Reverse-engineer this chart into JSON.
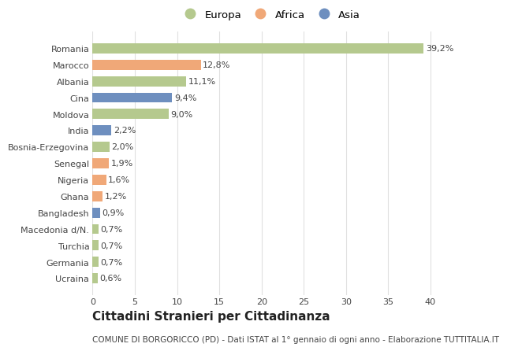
{
  "countries": [
    "Romania",
    "Marocco",
    "Albania",
    "Cina",
    "Moldova",
    "India",
    "Bosnia-Erzegovina",
    "Senegal",
    "Nigeria",
    "Ghana",
    "Bangladesh",
    "Macedonia d/N.",
    "Turchia",
    "Germania",
    "Ucraina"
  ],
  "values": [
    39.2,
    12.8,
    11.1,
    9.4,
    9.0,
    2.2,
    2.0,
    1.9,
    1.6,
    1.2,
    0.9,
    0.7,
    0.7,
    0.7,
    0.6
  ],
  "labels": [
    "39,2%",
    "12,8%",
    "11,1%",
    "9,4%",
    "9,0%",
    "2,2%",
    "2,0%",
    "1,9%",
    "1,6%",
    "1,2%",
    "0,9%",
    "0,7%",
    "0,7%",
    "0,7%",
    "0,6%"
  ],
  "continents": [
    "Europa",
    "Africa",
    "Europa",
    "Asia",
    "Europa",
    "Asia",
    "Europa",
    "Africa",
    "Africa",
    "Africa",
    "Asia",
    "Europa",
    "Europa",
    "Europa",
    "Europa"
  ],
  "colors": {
    "Europa": "#b5c98e",
    "Africa": "#f0a878",
    "Asia": "#6e8fbf"
  },
  "xlim": [
    0,
    42
  ],
  "xticks": [
    0,
    5,
    10,
    15,
    20,
    25,
    30,
    35,
    40
  ],
  "background_color": "#ffffff",
  "title": "Cittadini Stranieri per Cittadinanza",
  "subtitle": "COMUNE DI BORGORICCO (PD) - Dati ISTAT al 1° gennaio di ogni anno - Elaborazione TUTTITALIA.IT",
  "grid_color": "#e0e0e0",
  "bar_height": 0.62,
  "text_color": "#444444",
  "title_fontsize": 11,
  "subtitle_fontsize": 7.5,
  "label_fontsize": 8,
  "tick_fontsize": 8,
  "legend_fontsize": 9.5
}
